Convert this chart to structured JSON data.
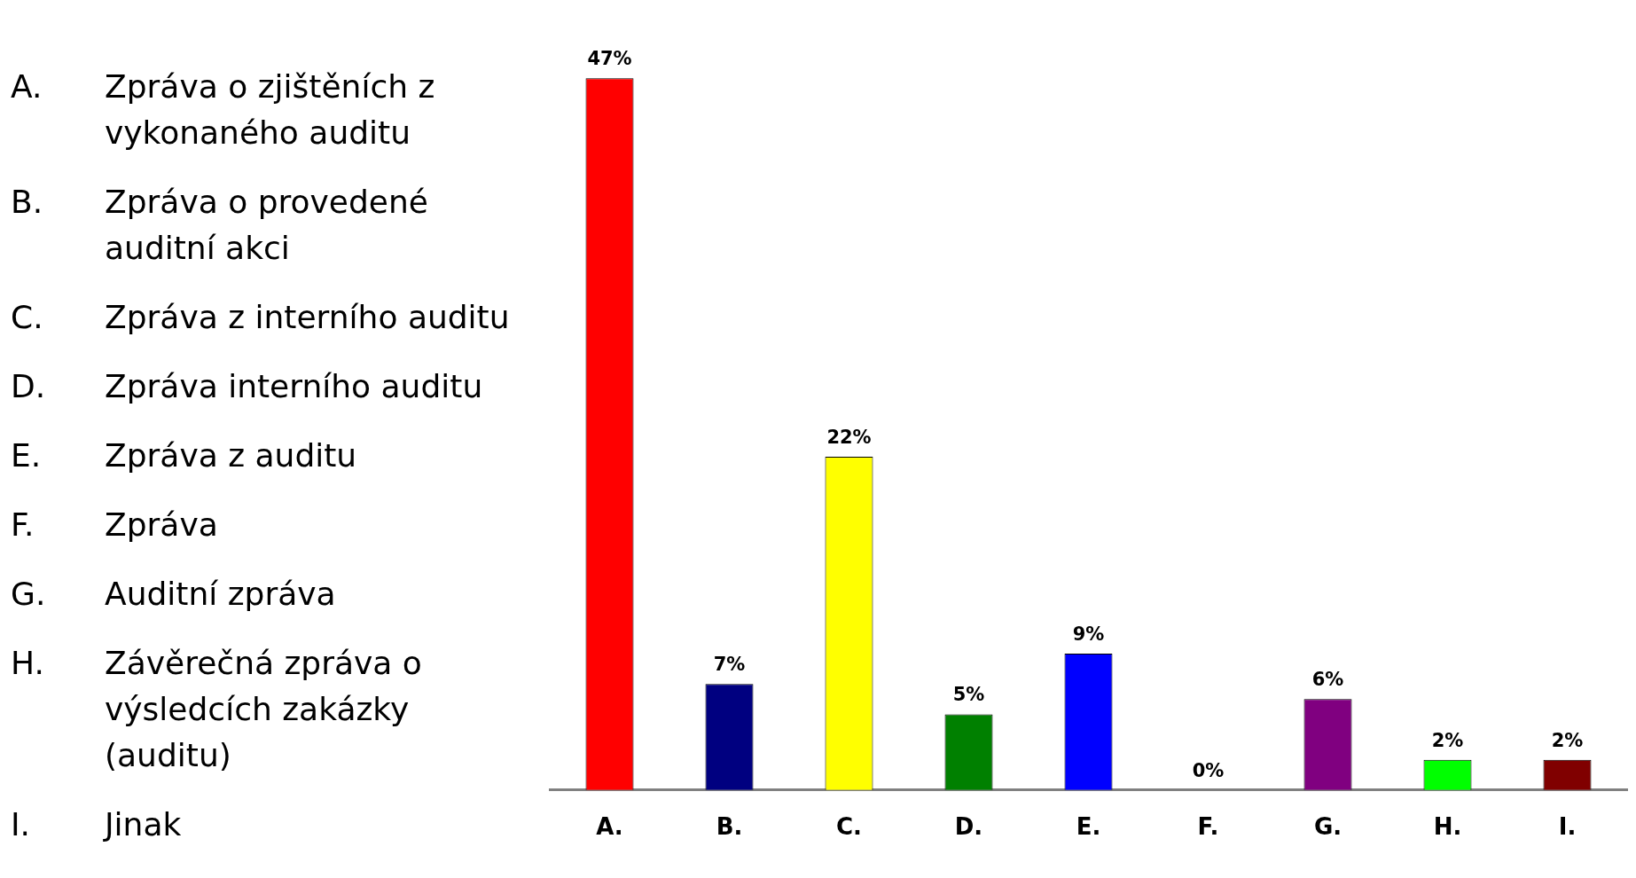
{
  "chart_data": {
    "type": "bar",
    "categories": [
      "A.",
      "B.",
      "C.",
      "D.",
      "E.",
      "F.",
      "G.",
      "H.",
      "I."
    ],
    "values": [
      47,
      7,
      22,
      5,
      9,
      0,
      6,
      2,
      2
    ],
    "value_labels": [
      "47%",
      "7%",
      "22%",
      "5%",
      "9%",
      "0%",
      "6%",
      "2%",
      "2%"
    ],
    "colors": [
      "#ff0000",
      "#000080",
      "#ffff00",
      "#008000",
      "#0000ff",
      "#cc6600",
      "#800080",
      "#00ff00",
      "#800000"
    ],
    "legend": false,
    "tick_labels": "x",
    "annotations": [
      "A. Zpráva o zjištěních z vykonaného auditu",
      "B. Zpráva o provedené auditní akci",
      "C. Zpráva z interního auditu",
      "D. Zpráva interního auditu",
      "E. Zpráva z auditu",
      "F. Zpráva",
      "G. Auditní zpráva",
      "H. Závěrečná zpráva o výsledcích zakázky (auditu)",
      "I. Jinak"
    ]
  }
}
